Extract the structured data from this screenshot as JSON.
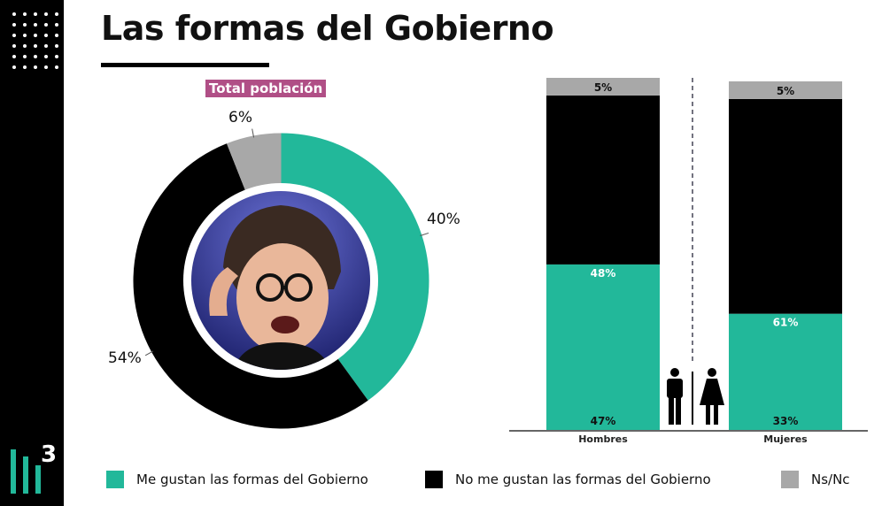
{
  "header": {
    "title": "Las formas del Gobierno",
    "subtitle": "Total  población"
  },
  "colors": {
    "gustan": "#22b89a",
    "no_gustan": "#000000",
    "nsnc": "#a8a8a8",
    "subtitle_bg": "#b04f86"
  },
  "brand": {
    "logo_digit": "3",
    "logo_icon": "bars-logo-icon",
    "dots_icon": "dot-grid-icon"
  },
  "photo": {
    "icon": "person-photo"
  },
  "chart_data": [
    {
      "type": "pie",
      "title": "Total  población",
      "categories": [
        "Me gustan las formas del Gobierno",
        "No me gustan las formas del Gobierno",
        "Ns/Nc"
      ],
      "values": [
        40,
        54,
        6
      ],
      "labels": [
        "40%",
        "54%",
        "6%"
      ]
    },
    {
      "type": "bar",
      "stacked": true,
      "categories": [
        "Hombres",
        "Mujeres"
      ],
      "series": [
        {
          "name": "Me gustan las formas del Gobierno",
          "values": [
            47,
            33
          ],
          "labels": [
            "47%",
            "33%"
          ]
        },
        {
          "name": "No me gustan las formas del Gobierno",
          "values": [
            48,
            61
          ],
          "labels": [
            "48%",
            "61%"
          ]
        },
        {
          "name": "Ns/Nc",
          "values": [
            5,
            5
          ],
          "labels": [
            "5%",
            "5%"
          ]
        }
      ],
      "icons": [
        "man-icon",
        "woman-icon"
      ],
      "ylim": [
        0,
        100
      ],
      "grid": false
    }
  ],
  "legend": [
    {
      "label": "Me gustan las formas del Gobierno",
      "color": "#22b89a"
    },
    {
      "label": "No me gustan las formas del Gobierno",
      "color": "#000000"
    },
    {
      "label": "Ns/Nc",
      "color": "#a8a8a8"
    }
  ]
}
